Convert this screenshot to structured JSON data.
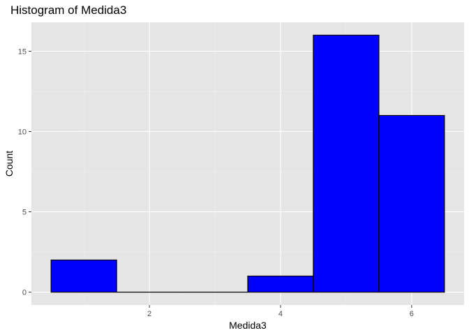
{
  "chart_data": {
    "type": "bar",
    "subtype": "histogram",
    "title": "Histogram of Medida3",
    "xlabel": "Medida3",
    "ylabel": "Count",
    "bins": [
      {
        "from": 0.5,
        "to": 1.5,
        "count": 2
      },
      {
        "from": 1.5,
        "to": 2.5,
        "count": 0
      },
      {
        "from": 2.5,
        "to": 3.5,
        "count": 0
      },
      {
        "from": 3.5,
        "to": 4.5,
        "count": 1
      },
      {
        "from": 4.5,
        "to": 5.5,
        "count": 16
      },
      {
        "from": 5.5,
        "to": 6.5,
        "count": 11
      }
    ],
    "xlim": [
      0.2,
      6.8
    ],
    "ylim": [
      -0.8,
      16.8
    ],
    "xticks": [
      2,
      4,
      6
    ],
    "yticks": [
      0,
      5,
      10,
      15
    ],
    "fill_color": "#0000ff",
    "outline_color": "#000000",
    "panel_color": "#e5e5e5",
    "grid": true,
    "legend": "none"
  }
}
